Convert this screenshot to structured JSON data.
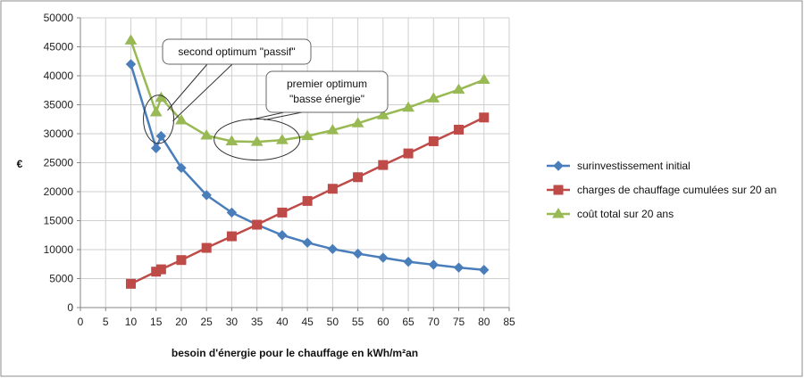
{
  "chart_data": {
    "type": "line",
    "xlabel": "besoin d'énergie pour le chauffage en kWh/m²an",
    "ylabel": "€",
    "xlim": [
      0,
      85
    ],
    "ylim": [
      0,
      50000
    ],
    "xticks": [
      "0",
      "5",
      "10",
      "15",
      "20",
      "25",
      "30",
      "35",
      "40",
      "45",
      "50",
      "55",
      "60",
      "65",
      "70",
      "75",
      "80",
      "85"
    ],
    "yticks": [
      "0",
      "5000",
      "10000",
      "15000",
      "20000",
      "25000",
      "30000",
      "35000",
      "40000",
      "45000",
      "50000"
    ],
    "grid": true,
    "legend_position": "right",
    "series": [
      {
        "name": "surinvestissement initial",
        "color": "#4a7ebb",
        "marker": "diamond",
        "x": [
          10,
          15,
          16,
          20,
          25,
          30,
          35,
          40,
          45,
          50,
          55,
          60,
          65,
          70,
          75,
          80
        ],
        "y": [
          42000,
          27500,
          29600,
          24100,
          19400,
          16400,
          14300,
          12500,
          11200,
          10100,
          9300,
          8600,
          7900,
          7400,
          6900,
          6500
        ]
      },
      {
        "name": "charges de chauffage cumulées sur 20 an",
        "color": "#be4b48",
        "marker": "square",
        "x": [
          10,
          15,
          16,
          20,
          25,
          30,
          35,
          40,
          45,
          50,
          55,
          60,
          65,
          70,
          75,
          80
        ],
        "y": [
          4100,
          6200,
          6600,
          8200,
          10300,
          12300,
          14300,
          16400,
          18400,
          20500,
          22500,
          24600,
          26600,
          28700,
          30700,
          32800
        ]
      },
      {
        "name": "coût total sur 20 ans",
        "color": "#98b954",
        "marker": "triangle",
        "x": [
          10,
          15,
          16,
          20,
          25,
          30,
          35,
          40,
          45,
          50,
          55,
          60,
          65,
          70,
          75,
          80
        ],
        "y": [
          46100,
          33700,
          36200,
          32300,
          29700,
          28700,
          28600,
          28900,
          29600,
          30600,
          31800,
          33200,
          34500,
          36100,
          37600,
          39300
        ]
      }
    ],
    "annotations": [
      {
        "id": "passif",
        "text": "second optimum \"passif\""
      },
      {
        "id": "basse",
        "lines": [
          "premier optimum",
          "\"basse énergie\""
        ]
      }
    ]
  }
}
